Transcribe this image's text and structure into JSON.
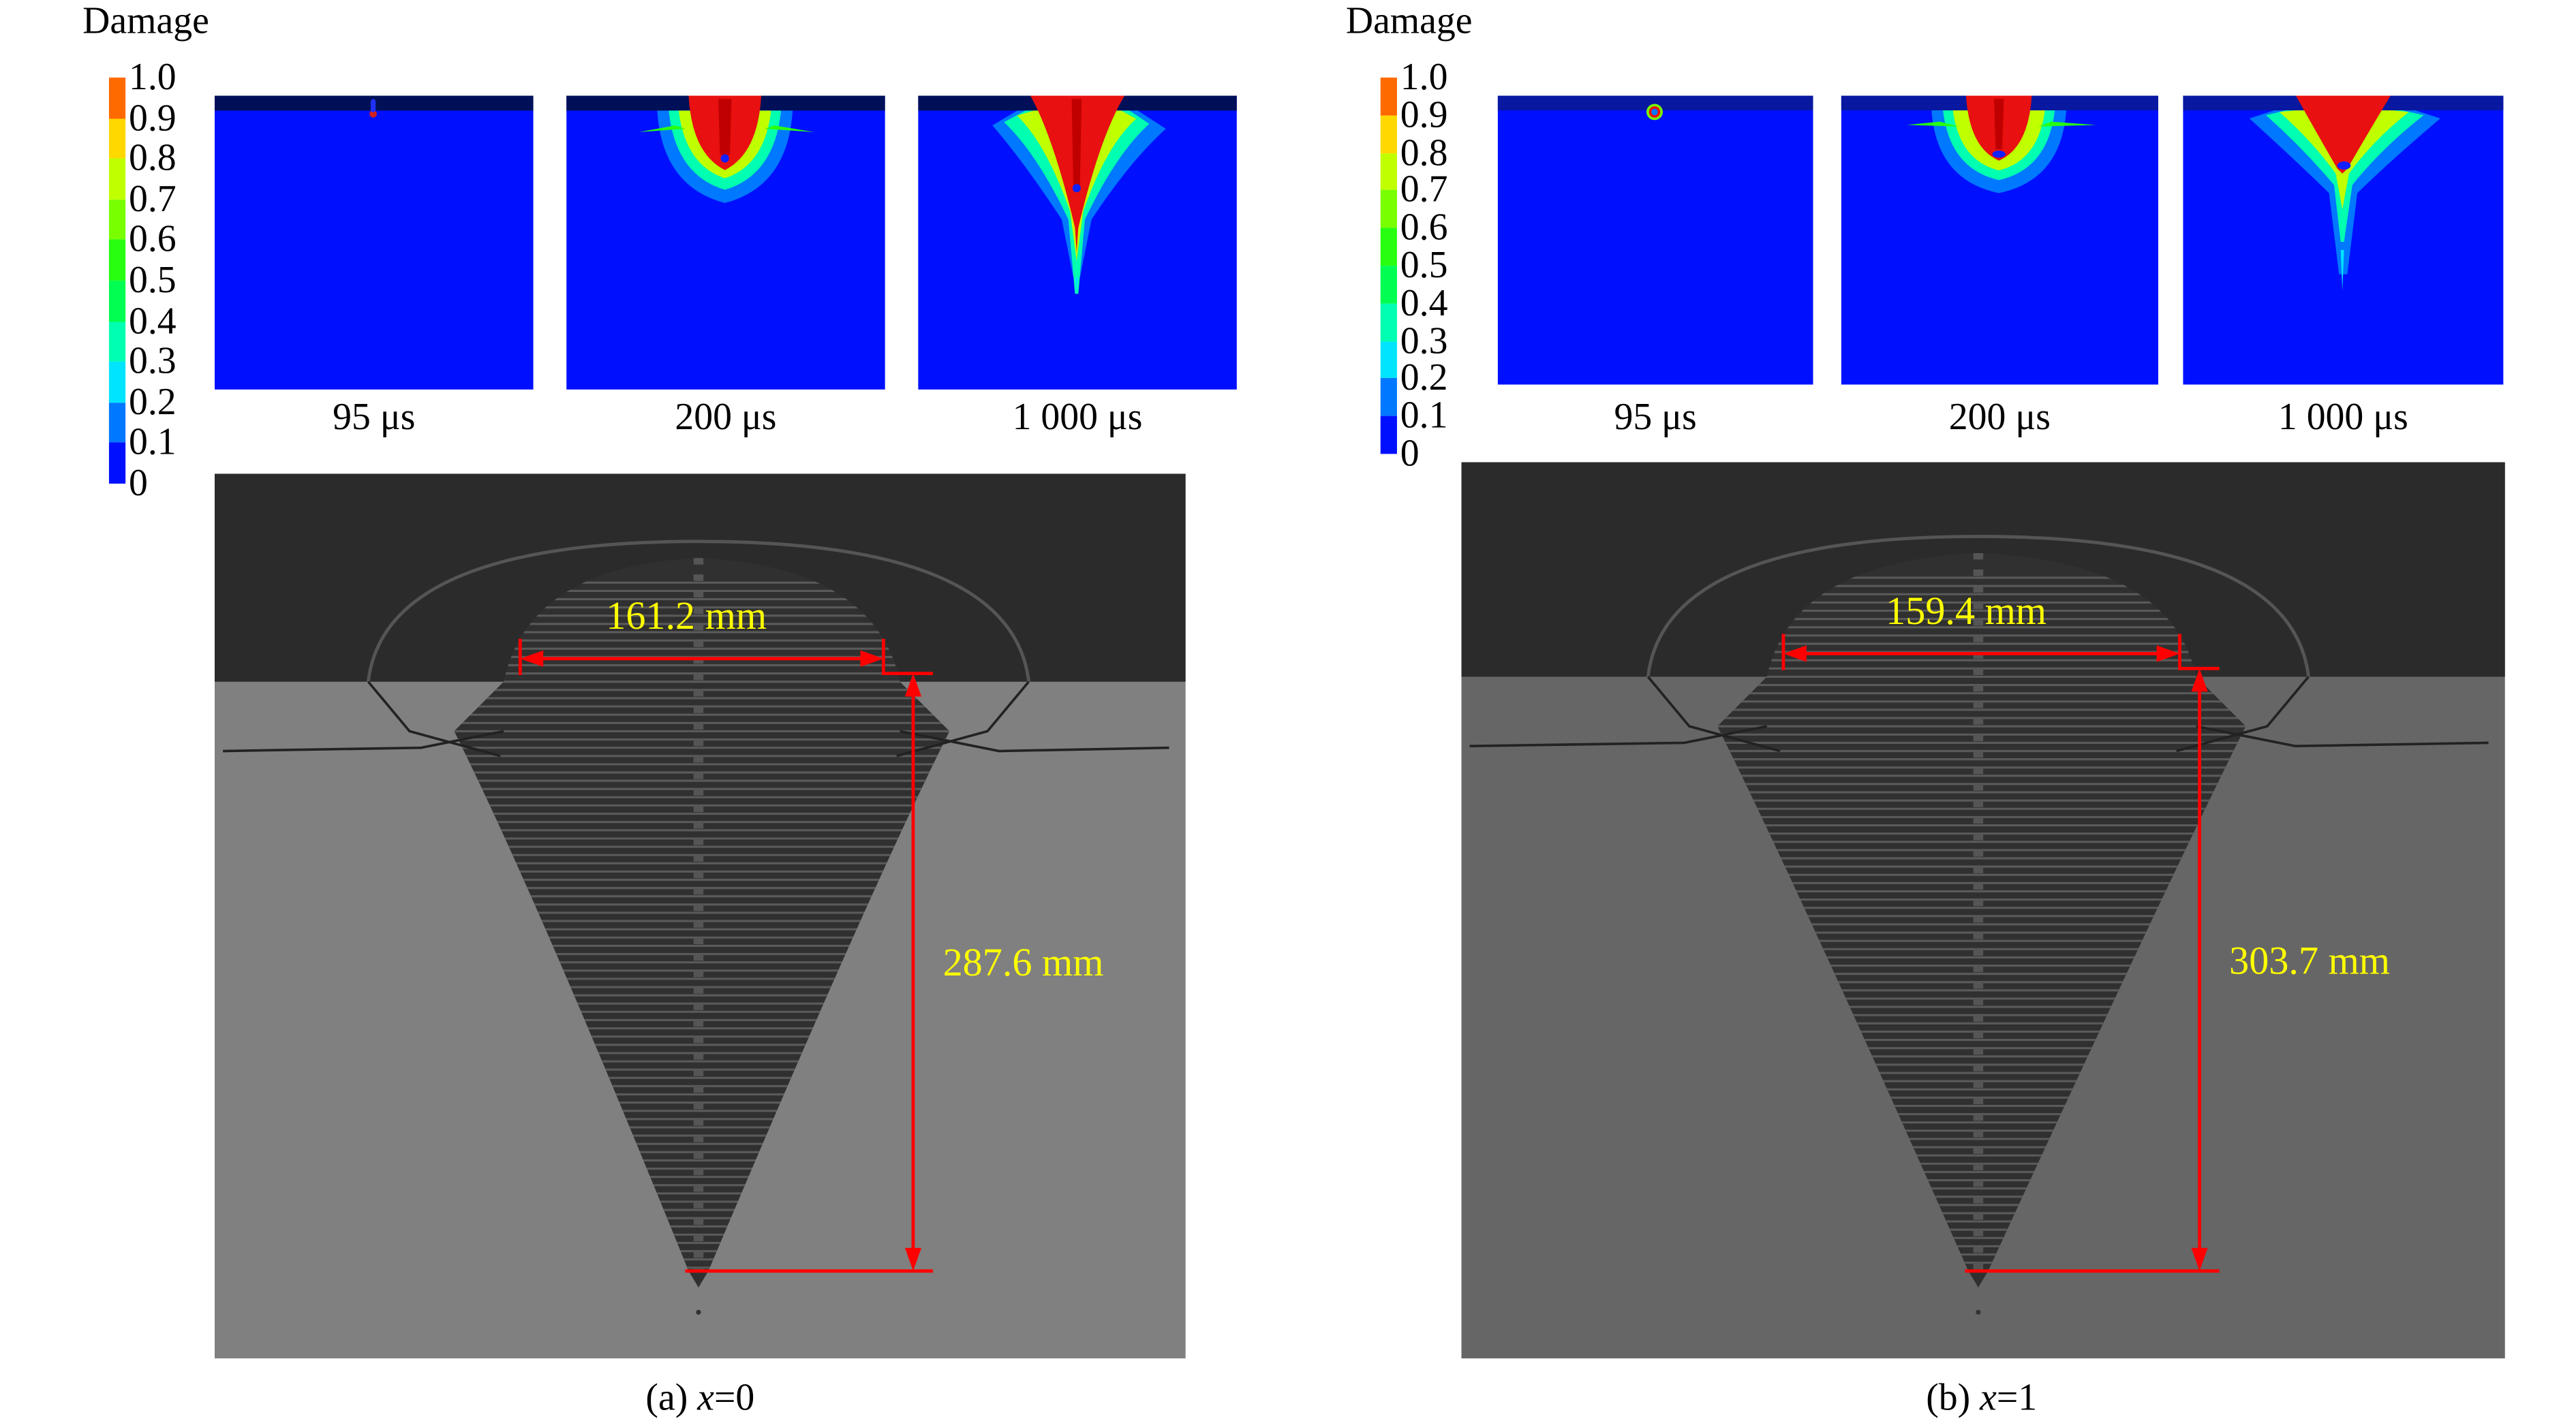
{
  "colorbar": {
    "title": "Damage",
    "ticks": [
      "0",
      "0.1",
      "0.2",
      "0.3",
      "0.4",
      "0.5",
      "0.6",
      "0.7",
      "0.8",
      "0.9",
      "1.0"
    ],
    "colors": [
      "#0010ff",
      "#0078ff",
      "#00e4ff",
      "#00ffb0",
      "#00ff50",
      "#28ff10",
      "#78ff00",
      "#c0ff00",
      "#ffd800",
      "#ff6a00"
    ]
  },
  "panels": [
    {
      "id": "a",
      "times": [
        "95 μs",
        "200 μs",
        "1 000 μs"
      ],
      "diameter_label": "161.2 mm",
      "depth_label": "287.6 mm",
      "caption_prefix": "(a) ",
      "caption_var": "x",
      "caption_suffix": "=0",
      "background_color": "#808080"
    },
    {
      "id": "b",
      "times": [
        "95 μs",
        "200 μs",
        "1 000 μs"
      ],
      "diameter_label": "159.4 mm",
      "depth_label": "303.7 mm",
      "caption_prefix": "(b) ",
      "caption_var": "x",
      "caption_suffix": "=1",
      "background_color": "#666666"
    }
  ]
}
